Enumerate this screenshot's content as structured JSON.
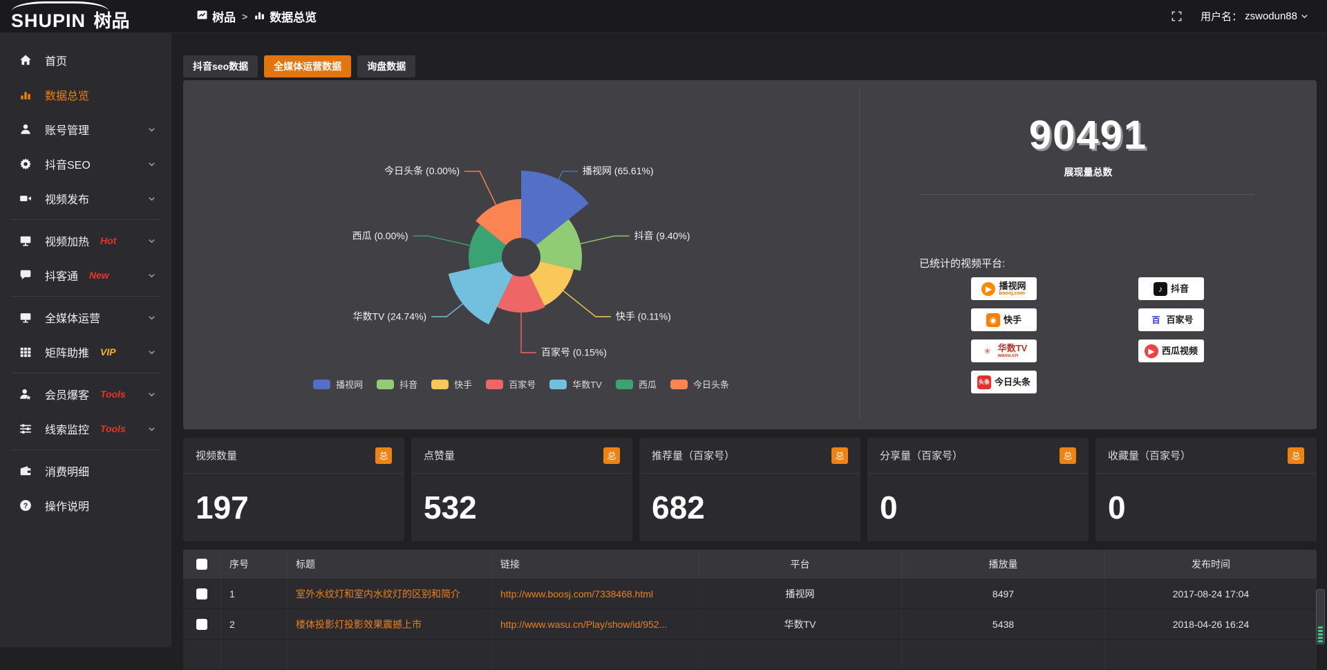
{
  "header": {
    "logo_en": "SHUPIN",
    "logo_cn": "树品",
    "breadcrumb": [
      {
        "label": "树品",
        "icon": "board"
      },
      {
        "label": "数据总览",
        "icon": "chart"
      }
    ],
    "breadcrumb_sep": ">",
    "user_prefix": "用户名：",
    "username": "zswodun88"
  },
  "sidebar": {
    "items": [
      {
        "label": "首页",
        "icon": "home",
        "active": false
      },
      {
        "label": "数据总览",
        "icon": "chart",
        "active": true
      },
      {
        "label": "账号管理",
        "icon": "user",
        "chevron": true
      },
      {
        "label": "抖音SEO",
        "icon": "gear",
        "chevron": true
      },
      {
        "label": "视频发布",
        "icon": "video",
        "chevron": true,
        "divider_after": true
      },
      {
        "label": "视频加热",
        "icon": "monitor",
        "badge": "Hot",
        "badge_color": "#ea3323",
        "chevron": true
      },
      {
        "label": "抖客通",
        "icon": "chat",
        "badge": "New",
        "badge_color": "#ea3323",
        "chevron": true,
        "divider_after": true
      },
      {
        "label": "全媒体运营",
        "icon": "display",
        "chevron": true
      },
      {
        "label": "矩阵助推",
        "icon": "grid",
        "badge": "VIP",
        "badge_color": "#f6b52a",
        "chevron": true,
        "divider_after": true
      },
      {
        "label": "会员爆客",
        "icon": "member",
        "badge": "Tools",
        "badge_color": "#ea3323",
        "chevron": true
      },
      {
        "label": "线索监控",
        "icon": "sliders",
        "badge": "Tools",
        "badge_color": "#ea3323",
        "chevron": true,
        "divider_after": true
      },
      {
        "label": "消费明细",
        "icon": "wallet"
      },
      {
        "label": "操作说明",
        "icon": "help"
      }
    ]
  },
  "tabs": [
    {
      "label": "抖音seo数据",
      "active": false
    },
    {
      "label": "全媒体运营数据",
      "active": true
    },
    {
      "label": "询盘数据",
      "active": false
    }
  ],
  "chart_data": {
    "type": "pie",
    "variant": "nightingale-rose",
    "legend_position": "bottom",
    "value_unit": "percent",
    "series": [
      {
        "name": "播视网",
        "value": 65.61,
        "label": "播视网 (65.61%)",
        "color": "#5470c6",
        "outer_radius": 125
      },
      {
        "name": "抖音",
        "value": 9.4,
        "label": "抖音 (9.40%)",
        "color": "#91cc75",
        "outer_radius": 88
      },
      {
        "name": "快手",
        "value": 0.11,
        "label": "快手 (0.11%)",
        "color": "#fac858",
        "outer_radius": 78
      },
      {
        "name": "百家号",
        "value": 0.15,
        "label": "百家号 (0.15%)",
        "color": "#ee6666",
        "outer_radius": 80
      },
      {
        "name": "华数TV",
        "value": 24.74,
        "label": "华数TV (24.74%)",
        "color": "#73c0de",
        "outer_radius": 108
      },
      {
        "name": "西瓜",
        "value": 0.0,
        "label": "西瓜 (0.00%)",
        "color": "#3ba272",
        "outer_radius": 76
      },
      {
        "name": "今日头条",
        "value": 0.0,
        "label": "今日头条 (0.00%)",
        "color": "#fc8452",
        "outer_radius": 84
      }
    ]
  },
  "summary": {
    "total": "90491",
    "total_label": "展现量总数",
    "platforms_title": "已统计的视频平台:",
    "platforms_left": [
      {
        "name": "播视网",
        "sub": "boosj.com",
        "sub_color": "#f07c00",
        "icon_text": "▶",
        "icon_bg": "#ff8a00",
        "icon_color": "#fff",
        "shape": "circle"
      },
      {
        "name": "快手",
        "icon_text": "◉",
        "icon_bg": "#ff7e00",
        "icon_color": "#fff"
      },
      {
        "name": "华数TV",
        "name_color": "#b5352c",
        "sub": "wasu.cn",
        "sub_color": "#d84315",
        "icon_text": "✳",
        "icon_bg": "#fff",
        "icon_color": "#e23b2e"
      },
      {
        "name": "今日头条",
        "icon_text": "头条",
        "icon_bg": "#e8302a",
        "icon_color": "#fff",
        "small_text": true
      }
    ],
    "platforms_right": [
      {
        "name": "抖音",
        "icon_text": "♪",
        "icon_bg": "#111",
        "icon_color": "#fff"
      },
      {
        "name": "百家号",
        "icon_text": "百",
        "icon_bg": "#fff",
        "icon_color": "#2932e1"
      },
      {
        "name": "西瓜视频",
        "icon_text": "▶",
        "icon_bg": "#f04142",
        "icon_color": "#fff",
        "shape": "circle"
      }
    ]
  },
  "stat_cards": [
    {
      "label": "视频数量",
      "badge": "总",
      "value": "197"
    },
    {
      "label": "点赞量",
      "badge": "总",
      "value": "532"
    },
    {
      "label": "推荐量（百家号）",
      "badge": "总",
      "value": "682"
    },
    {
      "label": "分享量（百家号）",
      "badge": "总",
      "value": "0"
    },
    {
      "label": "收藏量（百家号）",
      "badge": "总",
      "value": "0"
    }
  ],
  "table": {
    "columns": [
      {
        "label": "序号",
        "align": "left"
      },
      {
        "label": "标题",
        "align": "left"
      },
      {
        "label": "链接",
        "align": "left"
      },
      {
        "label": "平台",
        "align": "center"
      },
      {
        "label": "播放量",
        "align": "center"
      },
      {
        "label": "发布时间",
        "align": "center"
      }
    ],
    "rows": [
      {
        "no": "1",
        "title": "室外水纹灯和室内水纹灯的区别和简介",
        "link": "http://www.boosj.com/7338468.html",
        "platform": "播视网",
        "views": "8497",
        "time": "2017-08-24 17:04"
      },
      {
        "no": "2",
        "title": "楼体投影灯投影效果震撼上市",
        "link": "http://www.wasu.cn/Play/show/id/952...",
        "platform": "华数TV",
        "views": "5438",
        "time": "2018-04-26 16:24"
      }
    ],
    "partial_row": true
  }
}
